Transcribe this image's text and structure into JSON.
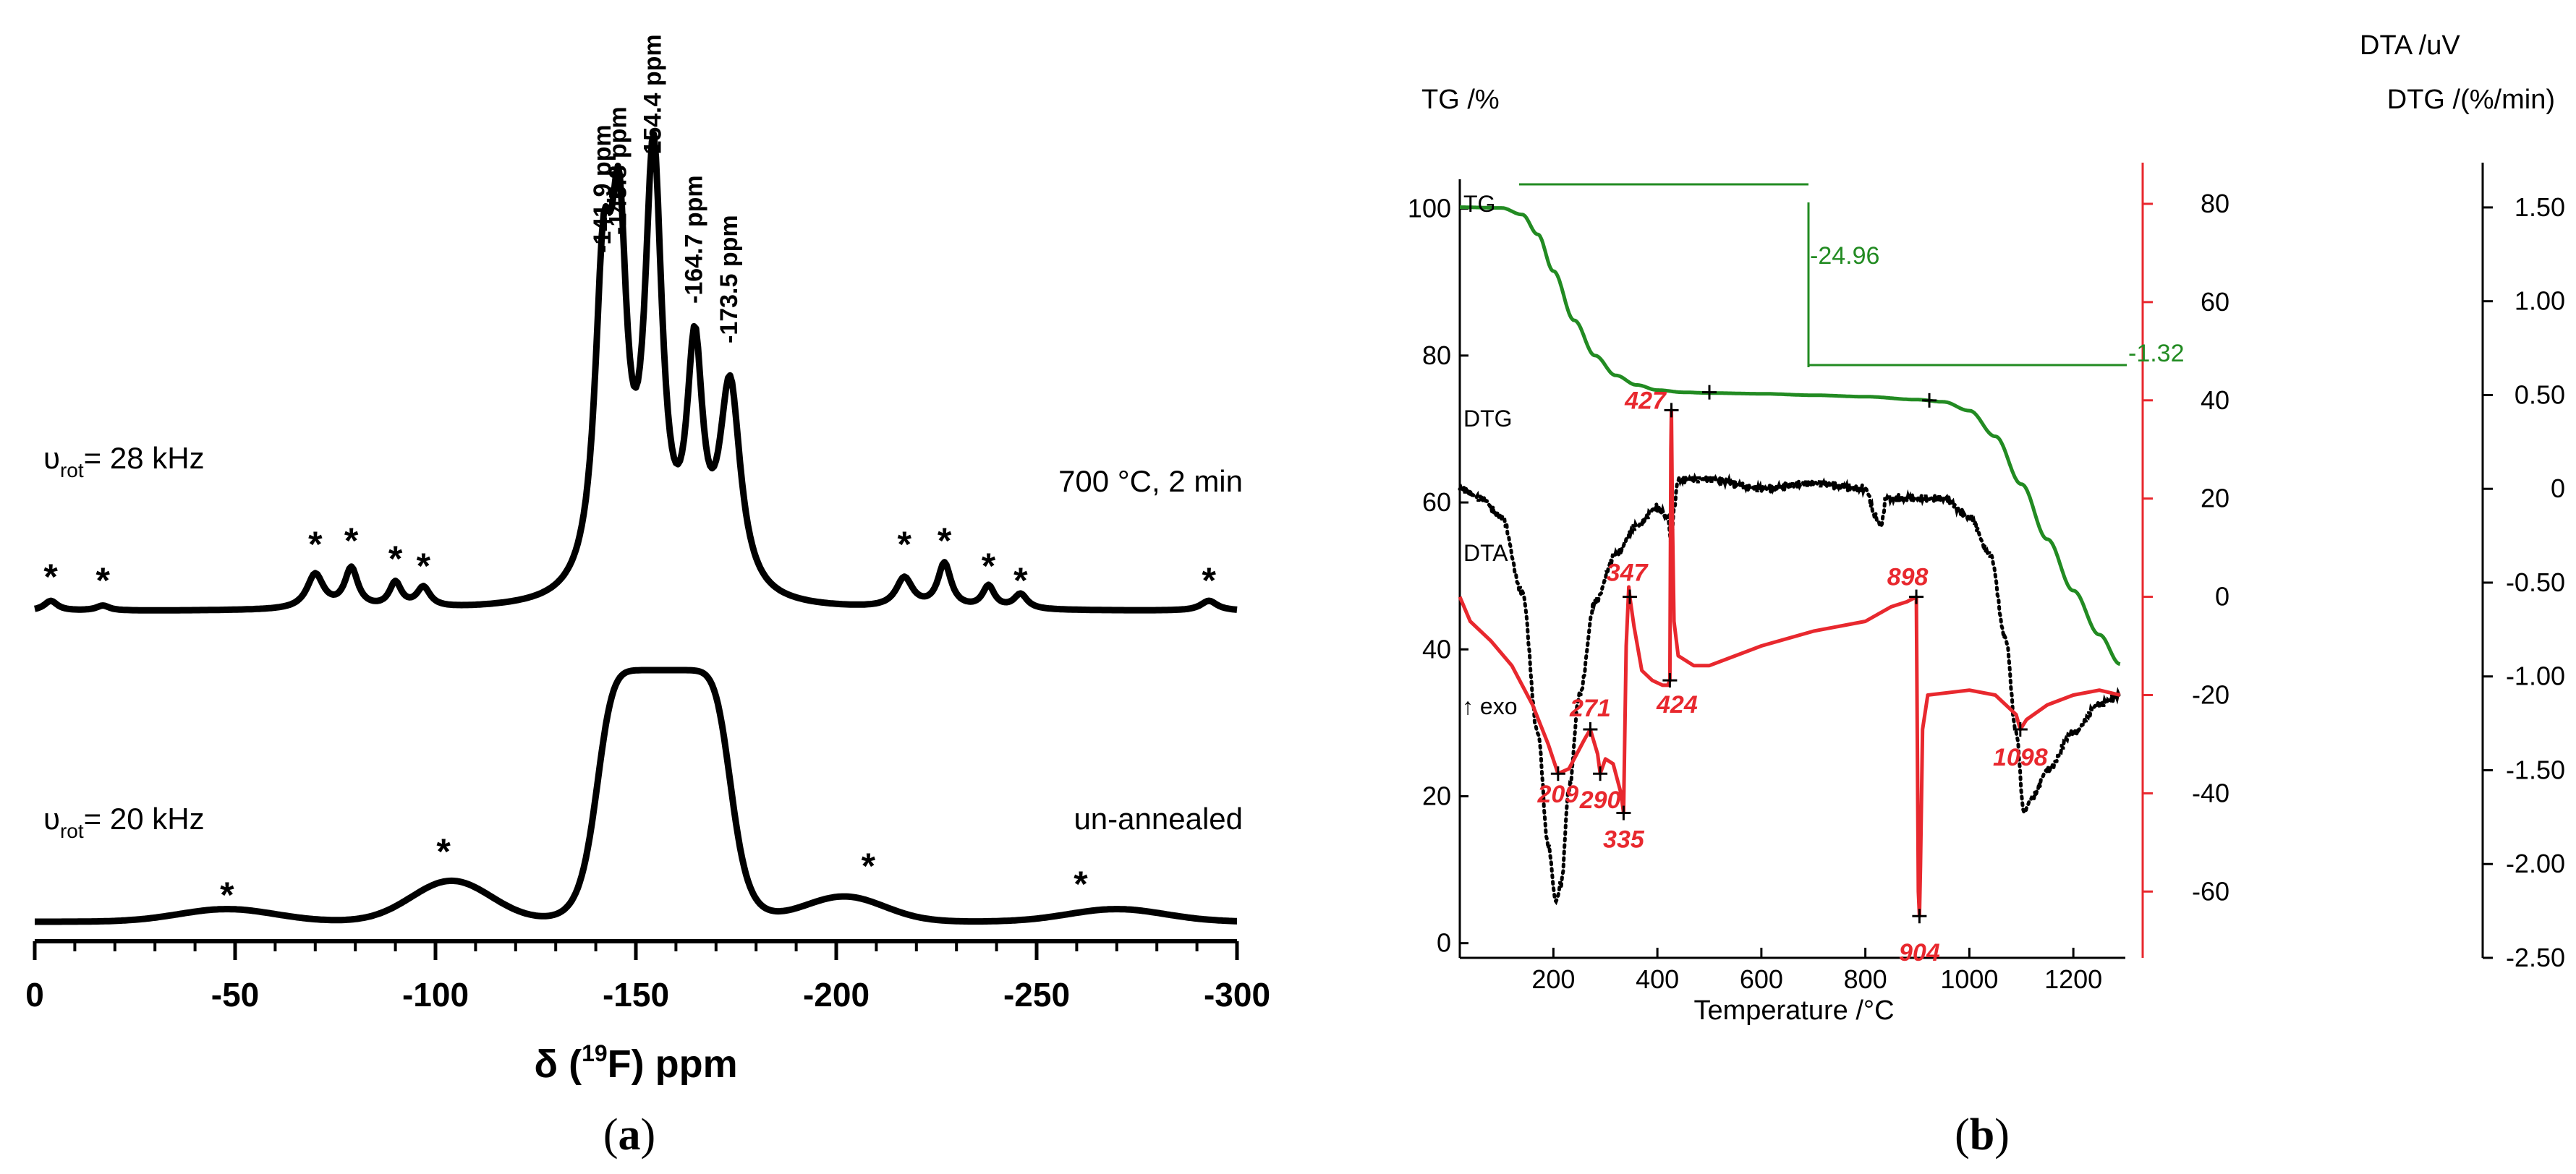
{
  "chart_data": [
    {
      "type": "line",
      "panel": "(a)",
      "xlabel": "δ (19F) ppm",
      "xlabel_main": "δ (",
      "xlabel_sup": "19",
      "xlabel_tail": "F) ppm",
      "xlim": [
        0,
        -300
      ],
      "x_ticks": [
        "0",
        "-50",
        "-100",
        "-150",
        "-200",
        "-250",
        "-300"
      ],
      "x_tick_values": [
        0,
        -50,
        -100,
        -150,
        -200,
        -250,
        -300
      ],
      "series": [
        {
          "name": "700 °C, 2 min",
          "label_left_main": "υ",
          "label_left_sub": "rot",
          "label_left_tail": "= 28 kHz",
          "label_right": "700 °C, 2 min",
          "baseline": 0.05,
          "peaks": [
            {
              "center": -141.9,
              "height": 0.58,
              "width": 2.6
            },
            {
              "center": -145.8,
              "height": 0.63,
              "width": 2.4
            },
            {
              "center": -154.4,
              "height": 0.86,
              "width": 2.6
            },
            {
              "center": -164.7,
              "height": 0.46,
              "width": 2.4
            },
            {
              "center": -173.5,
              "height": 0.42,
              "width": 3.2
            },
            {
              "center": -70,
              "height": 0.07,
              "width": 2.5
            },
            {
              "center": -79,
              "height": 0.08,
              "width": 2.0
            },
            {
              "center": -90,
              "height": 0.05,
              "width": 1.8
            },
            {
              "center": -97,
              "height": 0.04,
              "width": 2.0
            },
            {
              "center": -217,
              "height": 0.06,
              "width": 2.5
            },
            {
              "center": -227,
              "height": 0.09,
              "width": 2.0
            },
            {
              "center": -238,
              "height": 0.045,
              "width": 1.8
            },
            {
              "center": -246,
              "height": 0.03,
              "width": 2.0
            },
            {
              "center": -4,
              "height": 0.02,
              "width": 2.0
            },
            {
              "center": -17,
              "height": 0.01,
              "width": 2.0
            },
            {
              "center": -293,
              "height": 0.02,
              "width": 2.5
            }
          ],
          "peak_labels": [
            "-141.9 ppm",
            "-145.8 ppm",
            "-154.4 ppm",
            "-164.7 ppm",
            "-173.5 ppm"
          ],
          "peak_label_positions": [
            -141.9,
            -145.8,
            -154.4,
            -164.7,
            -173.5
          ],
          "spinning_sidebands_marker": "*",
          "spinning_sideband_positions": [
            -4,
            -17,
            -70,
            -79,
            -90,
            -97,
            -217,
            -227,
            -238,
            -246,
            -293
          ]
        },
        {
          "name": "un-annealed",
          "label_left_main": "υ",
          "label_left_sub": "rot",
          "label_left_tail": "= 20 kHz",
          "label_right": "un-annealed",
          "baseline": 0.0,
          "peaks": [
            {
              "center": -157,
              "height": 0.8,
              "width": 9.0,
              "shape": "broad"
            },
            {
              "center": -104,
              "height": 0.13,
              "width": 10.0
            },
            {
              "center": -48,
              "height": 0.04,
              "width": 12.0
            },
            {
              "center": -202,
              "height": 0.08,
              "width": 10.0
            },
            {
              "center": -270,
              "height": 0.04,
              "width": 12.0
            }
          ],
          "spinning_sidebands_marker": "*",
          "spinning_sideband_positions": [
            -48,
            -102,
            -208,
            -261
          ]
        }
      ]
    },
    {
      "type": "line",
      "panel": "(b)",
      "xlabel": "Temperature /°C",
      "xlim": [
        20,
        1300
      ],
      "x_ticks": [
        "200",
        "400",
        "600",
        "800",
        "1000",
        "1200"
      ],
      "x_tick_values": [
        200,
        400,
        600,
        800,
        1000,
        1200
      ],
      "y_axes": [
        {
          "title": "TG /%",
          "ylim": [
            -2,
            104
          ],
          "ticks": [
            "0",
            "20",
            "40",
            "60",
            "80",
            "100"
          ],
          "tick_values": [
            0,
            20,
            40,
            60,
            80,
            100
          ],
          "color": "#000000"
        },
        {
          "title": "DTA /uV",
          "ylim": [
            -73.5,
            85
          ],
          "ticks": [
            "80",
            "60",
            "40",
            "20",
            "0",
            "-20",
            "-40",
            "-60"
          ],
          "tick_values": [
            80,
            60,
            40,
            20,
            0,
            -20,
            -40,
            -60
          ],
          "color": "#e8282e"
        },
        {
          "title": "DTG /(%/min)",
          "ylim": [
            -2.5,
            1.65
          ],
          "ticks": [
            "1.50",
            "1.00",
            "0.50",
            "0",
            "-0.50",
            "-1.00",
            "-1.50",
            "-2.00",
            "-2.50"
          ],
          "tick_values": [
            1.5,
            1.0,
            0.5,
            0,
            -0.5,
            -1.0,
            -1.5,
            -2.0,
            -2.5
          ],
          "color": "#000000"
        }
      ],
      "series": [
        {
          "name": "TG",
          "color": "#228b22",
          "axis": "TG",
          "x": [
            20,
            100,
            140,
            170,
            200,
            240,
            280,
            320,
            360,
            400,
            450,
            500,
            600,
            700,
            800,
            900,
            950,
            1000,
            1050,
            1100,
            1150,
            1200,
            1250,
            1290
          ],
          "y": [
            100.2,
            100.1,
            99.2,
            96.5,
            91.5,
            84.8,
            80.0,
            77.3,
            76.0,
            75.3,
            75.0,
            74.9,
            74.8,
            74.6,
            74.4,
            74.0,
            73.7,
            72.5,
            69.0,
            62.5,
            55.0,
            48.0,
            42.0,
            38.0
          ]
        },
        {
          "name": "DTG",
          "color": "#000000",
          "style": "dotted",
          "axis": "DTG",
          "x": [
            20,
            60,
            100,
            140,
            170,
            190,
            205,
            215,
            230,
            250,
            280,
            320,
            360,
            400,
            420,
            427,
            432,
            440,
            500,
            600,
            700,
            800,
            820,
            830,
            840,
            900,
            950,
            1000,
            1040,
            1070,
            1090,
            1105,
            1120,
            1150,
            1200,
            1250,
            1290
          ],
          "y": [
            0.0,
            -0.05,
            -0.15,
            -0.55,
            -1.3,
            -1.9,
            -2.2,
            -2.1,
            -1.6,
            -1.1,
            -0.6,
            -0.35,
            -0.2,
            -0.1,
            -0.15,
            -0.3,
            -0.1,
            0.05,
            0.05,
            0.0,
            0.03,
            0.0,
            -0.15,
            -0.2,
            -0.05,
            -0.05,
            -0.05,
            -0.15,
            -0.35,
            -0.8,
            -1.3,
            -1.72,
            -1.65,
            -1.5,
            -1.3,
            -1.15,
            -1.1
          ]
        },
        {
          "name": "DTA",
          "color": "#e8282e",
          "axis": "DTA",
          "x": [
            20,
            40,
            80,
            120,
            160,
            190,
            209,
            230,
            260,
            271,
            285,
            290,
            300,
            315,
            330,
            335,
            340,
            345,
            347,
            355,
            370,
            390,
            410,
            420,
            424,
            426,
            427,
            429,
            432,
            440,
            470,
            500,
            550,
            600,
            700,
            800,
            850,
            880,
            898,
            900,
            902,
            904,
            906,
            910,
            920,
            1000,
            1050,
            1090,
            1098,
            1110,
            1150,
            1200,
            1250,
            1290
          ],
          "y": [
            0,
            -5,
            -9,
            -14,
            -22,
            -30,
            -36,
            -35,
            -29,
            -27,
            -32,
            -36,
            -33,
            -34,
            -40,
            -44,
            -10,
            2,
            0,
            -6,
            -15,
            -17,
            -18,
            -18,
            -17,
            30,
            38,
            15,
            -5,
            -12,
            -14,
            -14,
            -12,
            -10,
            -7,
            -5,
            -2,
            -1,
            0,
            -30,
            -60,
            -65,
            -55,
            -27,
            -20,
            -19,
            -20,
            -24,
            -27,
            -25,
            -22,
            -20,
            -19,
            -20
          ]
        }
      ],
      "series_labels": {
        "TG": "TG",
        "DTG": "DTG",
        "DTA": "DTA",
        "exo": "↑ exo"
      },
      "tg_step_annotations": [
        "-24.96",
        "-1.32"
      ],
      "dta_peak_annotations": [
        {
          "label": "209",
          "x": 209,
          "y": -36
        },
        {
          "label": "271",
          "x": 271,
          "y": -27
        },
        {
          "label": "290",
          "x": 290,
          "y": -36
        },
        {
          "label": "335",
          "x": 335,
          "y": -44
        },
        {
          "label": "347",
          "x": 347,
          "y": 0
        },
        {
          "label": "424",
          "x": 424,
          "y": -17
        },
        {
          "label": "427",
          "x": 427,
          "y": 38
        },
        {
          "label": "898",
          "x": 898,
          "y": 0
        },
        {
          "label": "904",
          "x": 904,
          "y": -65
        },
        {
          "label": "1098",
          "x": 1098,
          "y": -27
        }
      ]
    }
  ],
  "captions": {
    "a_open": "(",
    "a_letter": "a",
    "a_close": ")",
    "b_open": "(",
    "b_letter": "b",
    "b_close": ")"
  }
}
